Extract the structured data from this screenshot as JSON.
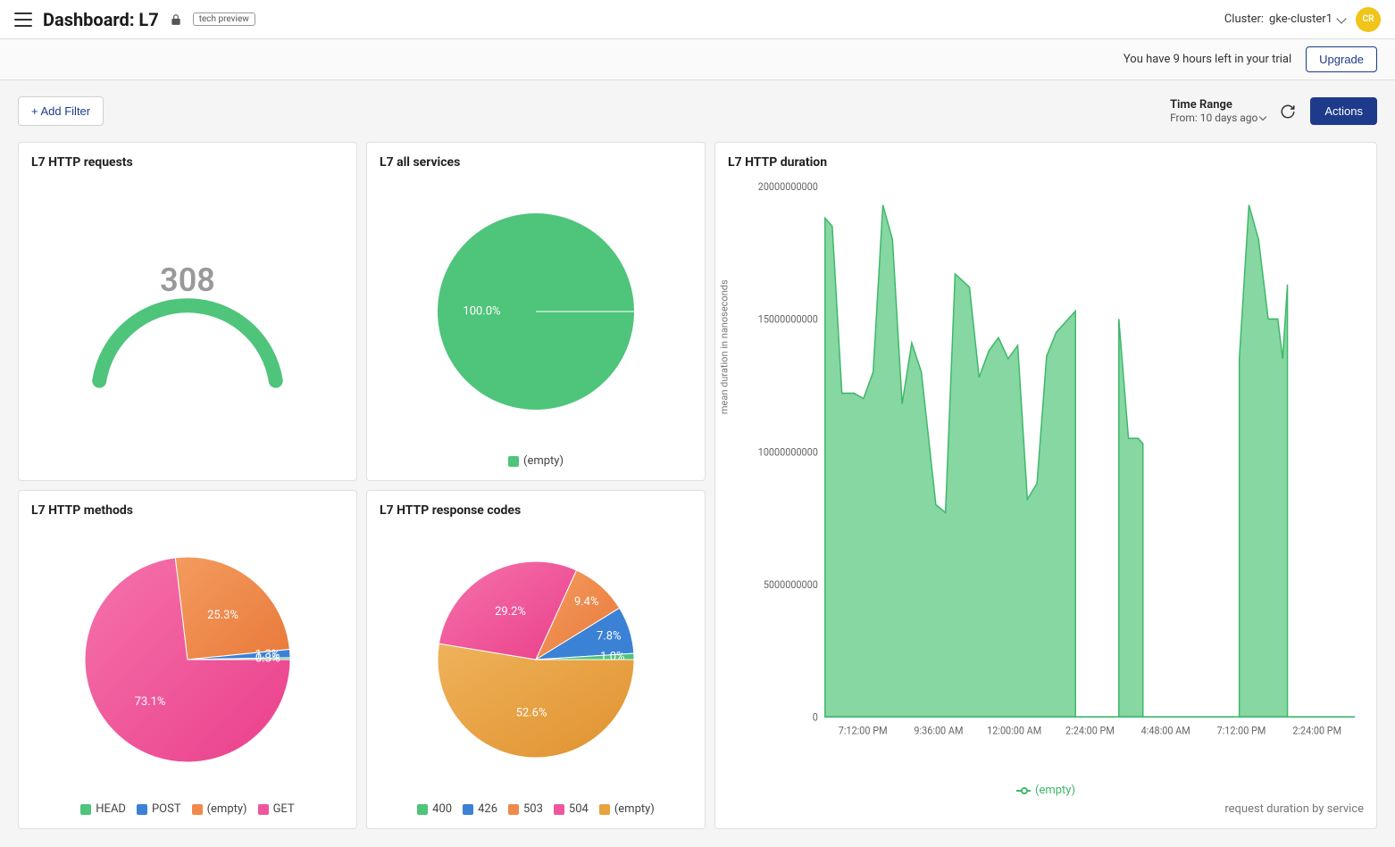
{
  "header": {
    "title": "Dashboard: L7",
    "badge": "tech preview",
    "cluster_label": "Cluster:",
    "cluster_name": "gke-cluster1",
    "avatar_initials": "CR"
  },
  "trial": {
    "message": "You have 9 hours left in your trial",
    "upgrade_label": "Upgrade"
  },
  "controls": {
    "add_filter_label": "+ Add Filter",
    "timerange_label": "Time Range",
    "timerange_from": "From: 10 days ago",
    "actions_label": "Actions"
  },
  "colors": {
    "green": "#4fc47b",
    "green_grad_a": "#69d08e",
    "green_grad_b": "#3eb86a",
    "blue": "#3b82d6",
    "orange": "#f08a4b",
    "orange_grad_a": "#f49b5f",
    "orange_grad_b": "#e87a3a",
    "pink": "#f0569b",
    "pink_grad_a": "#f573ab",
    "pink_grad_b": "#ea3f8b",
    "amber": "#e8a23e",
    "amber_grad_a": "#efb25a",
    "amber_grad_b": "#e0922f",
    "area_fill": "#86d7a2",
    "area_stroke": "#3eb86a",
    "text_muted": "#777"
  },
  "gauge": {
    "title": "L7 HTTP requests",
    "value": "308",
    "arc_color": "#4fc47b",
    "value_color": "#9e9e9e",
    "fontsize": 36
  },
  "pie_services": {
    "title": "L7 all services",
    "type": "pie",
    "slices": [
      {
        "label": "(empty)",
        "pct": 100.0,
        "color": "#4fc47b",
        "label_text": "100.0%"
      }
    ],
    "legend": [
      {
        "label": "(empty)",
        "color": "#4fc47b"
      }
    ]
  },
  "pie_methods": {
    "title": "L7 HTTP methods",
    "type": "pie",
    "slices": [
      {
        "label": "GET",
        "pct": 73.1,
        "color_a": "#f573ab",
        "color_b": "#ea3f8b",
        "label_text": "73.1%"
      },
      {
        "label": "(empty)",
        "pct": 25.3,
        "color_a": "#f49b5f",
        "color_b": "#e87a3a",
        "label_text": "25.3%"
      },
      {
        "label": "POST",
        "pct": 1.3,
        "color_a": "#3b82d6",
        "color_b": "#3b82d6",
        "label_text": "1.3%"
      },
      {
        "label": "HEAD",
        "pct": 0.3,
        "color_a": "#4fc47b",
        "color_b": "#4fc47b",
        "label_text": "0.3%"
      }
    ],
    "legend": [
      {
        "label": "HEAD",
        "color": "#4fc47b"
      },
      {
        "label": "POST",
        "color": "#3b82d6"
      },
      {
        "label": "(empty)",
        "color": "#f08a4b"
      },
      {
        "label": "GET",
        "color": "#f0569b"
      }
    ]
  },
  "pie_codes": {
    "title": "L7 HTTP response codes",
    "type": "pie",
    "slices": [
      {
        "label": "(empty)",
        "pct": 52.6,
        "color_a": "#efb25a",
        "color_b": "#e0922f",
        "label_text": "52.6%"
      },
      {
        "label": "504",
        "pct": 29.2,
        "color_a": "#f573ab",
        "color_b": "#ea3f8b",
        "label_text": "29.2%"
      },
      {
        "label": "503",
        "pct": 9.4,
        "color_a": "#f49b5f",
        "color_b": "#e87a3a",
        "label_text": "9.4%"
      },
      {
        "label": "426",
        "pct": 7.8,
        "color_a": "#3b82d6",
        "color_b": "#3b82d6",
        "label_text": "7.8%"
      },
      {
        "label": "400",
        "pct": 1.0,
        "color_a": "#4fc47b",
        "color_b": "#4fc47b",
        "label_text": "1.0%"
      }
    ],
    "legend": [
      {
        "label": "400",
        "color": "#4fc47b"
      },
      {
        "label": "426",
        "color": "#3b82d6"
      },
      {
        "label": "503",
        "color": "#f08a4b"
      },
      {
        "label": "504",
        "color": "#f0569b"
      },
      {
        "label": "(empty)",
        "color": "#e8a23e"
      }
    ]
  },
  "duration": {
    "title": "L7 HTTP duration",
    "type": "area",
    "ylabel": "mean duration in nanoseconds",
    "footer": "request duration by service",
    "y_ticks": [
      "0",
      "5000000000",
      "10000000000",
      "15000000000",
      "20000000000"
    ],
    "ylim": [
      0,
      20000000000
    ],
    "x_ticks": [
      "7:12:00 PM",
      "9:36:00 AM",
      "12:00:00 AM",
      "2:24:00 PM",
      "4:48:00 AM",
      "7:12:00 PM",
      "2:24:00 PM"
    ],
    "legend": [
      {
        "label": "(empty)",
        "color": "#3eb86a"
      }
    ],
    "fill_color": "#86d7a2",
    "stroke_color": "#3eb86a",
    "points": [
      [
        0,
        18.8
      ],
      [
        0.3,
        18.5
      ],
      [
        0.7,
        12.2
      ],
      [
        1.2,
        12.2
      ],
      [
        1.6,
        12.0
      ],
      [
        2.0,
        13.0
      ],
      [
        2.4,
        19.3
      ],
      [
        2.8,
        18.0
      ],
      [
        3.2,
        11.8
      ],
      [
        3.6,
        14.1
      ],
      [
        4.0,
        13.0
      ],
      [
        4.6,
        8.0
      ],
      [
        5.0,
        7.7
      ],
      [
        5.4,
        16.7
      ],
      [
        6.0,
        16.2
      ],
      [
        6.4,
        12.8
      ],
      [
        6.8,
        13.8
      ],
      [
        7.2,
        14.3
      ],
      [
        7.6,
        13.5
      ],
      [
        8.0,
        14.0
      ],
      [
        8.4,
        8.2
      ],
      [
        8.8,
        8.8
      ],
      [
        9.2,
        13.6
      ],
      [
        9.6,
        14.5
      ],
      [
        10.0,
        14.9
      ],
      [
        10.4,
        15.3
      ],
      [
        10.4,
        0
      ],
      [
        12.2,
        0
      ],
      [
        12.2,
        15.0
      ],
      [
        12.6,
        10.5
      ],
      [
        13.0,
        10.5
      ],
      [
        13.2,
        10.3
      ],
      [
        13.2,
        0
      ],
      [
        17.2,
        0
      ],
      [
        17.2,
        13.5
      ],
      [
        17.6,
        19.3
      ],
      [
        18.0,
        18.0
      ],
      [
        18.4,
        15.0
      ],
      [
        18.8,
        15.0
      ],
      [
        19.0,
        13.5
      ],
      [
        19.2,
        16.3
      ],
      [
        19.2,
        0
      ],
      [
        22,
        0
      ]
    ]
  }
}
